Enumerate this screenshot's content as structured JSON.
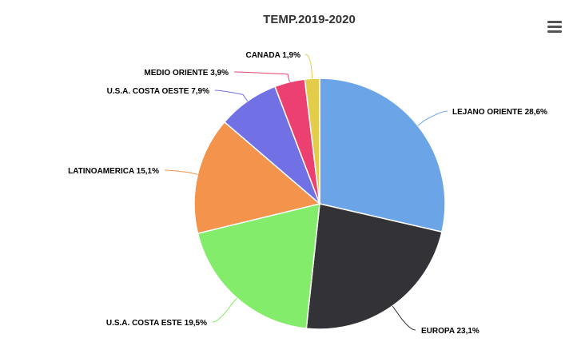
{
  "chart_data": {
    "type": "pie",
    "title": "TEMP.2019-2020",
    "slices": [
      {
        "label": "LEJANO ORIENTE",
        "value": 28.6,
        "display": "LEJANO ORIENTE 28,6%",
        "color": "#6ca5e7"
      },
      {
        "label": "EUROPA",
        "value": 23.1,
        "display": "EUROPA 23,1%",
        "color": "#333337"
      },
      {
        "label": "U.S.A. COSTA ESTE",
        "value": 19.5,
        "display": "U.S.A. COSTA ESTE 19,5%",
        "color": "#84ec6b"
      },
      {
        "label": "LATINOAMERICA",
        "value": 15.1,
        "display": "LATINOAMERICA 15,1%",
        "color": "#f3934c"
      },
      {
        "label": "U.S.A. COSTA OESTE",
        "value": 7.9,
        "display": "U.S.A. COSTA OESTE 7,9%",
        "color": "#7170e5"
      },
      {
        "label": "MEDIO ORIENTE",
        "value": 3.9,
        "display": "MEDIO ORIENTE 3,9%",
        "color": "#ec4170"
      },
      {
        "label": "CANADA",
        "value": 1.9,
        "display": "CANADA 1,9%",
        "color": "#e3cc4a"
      }
    ]
  },
  "toolbar": {
    "menu_icon": "hamburger-menu-icon"
  }
}
